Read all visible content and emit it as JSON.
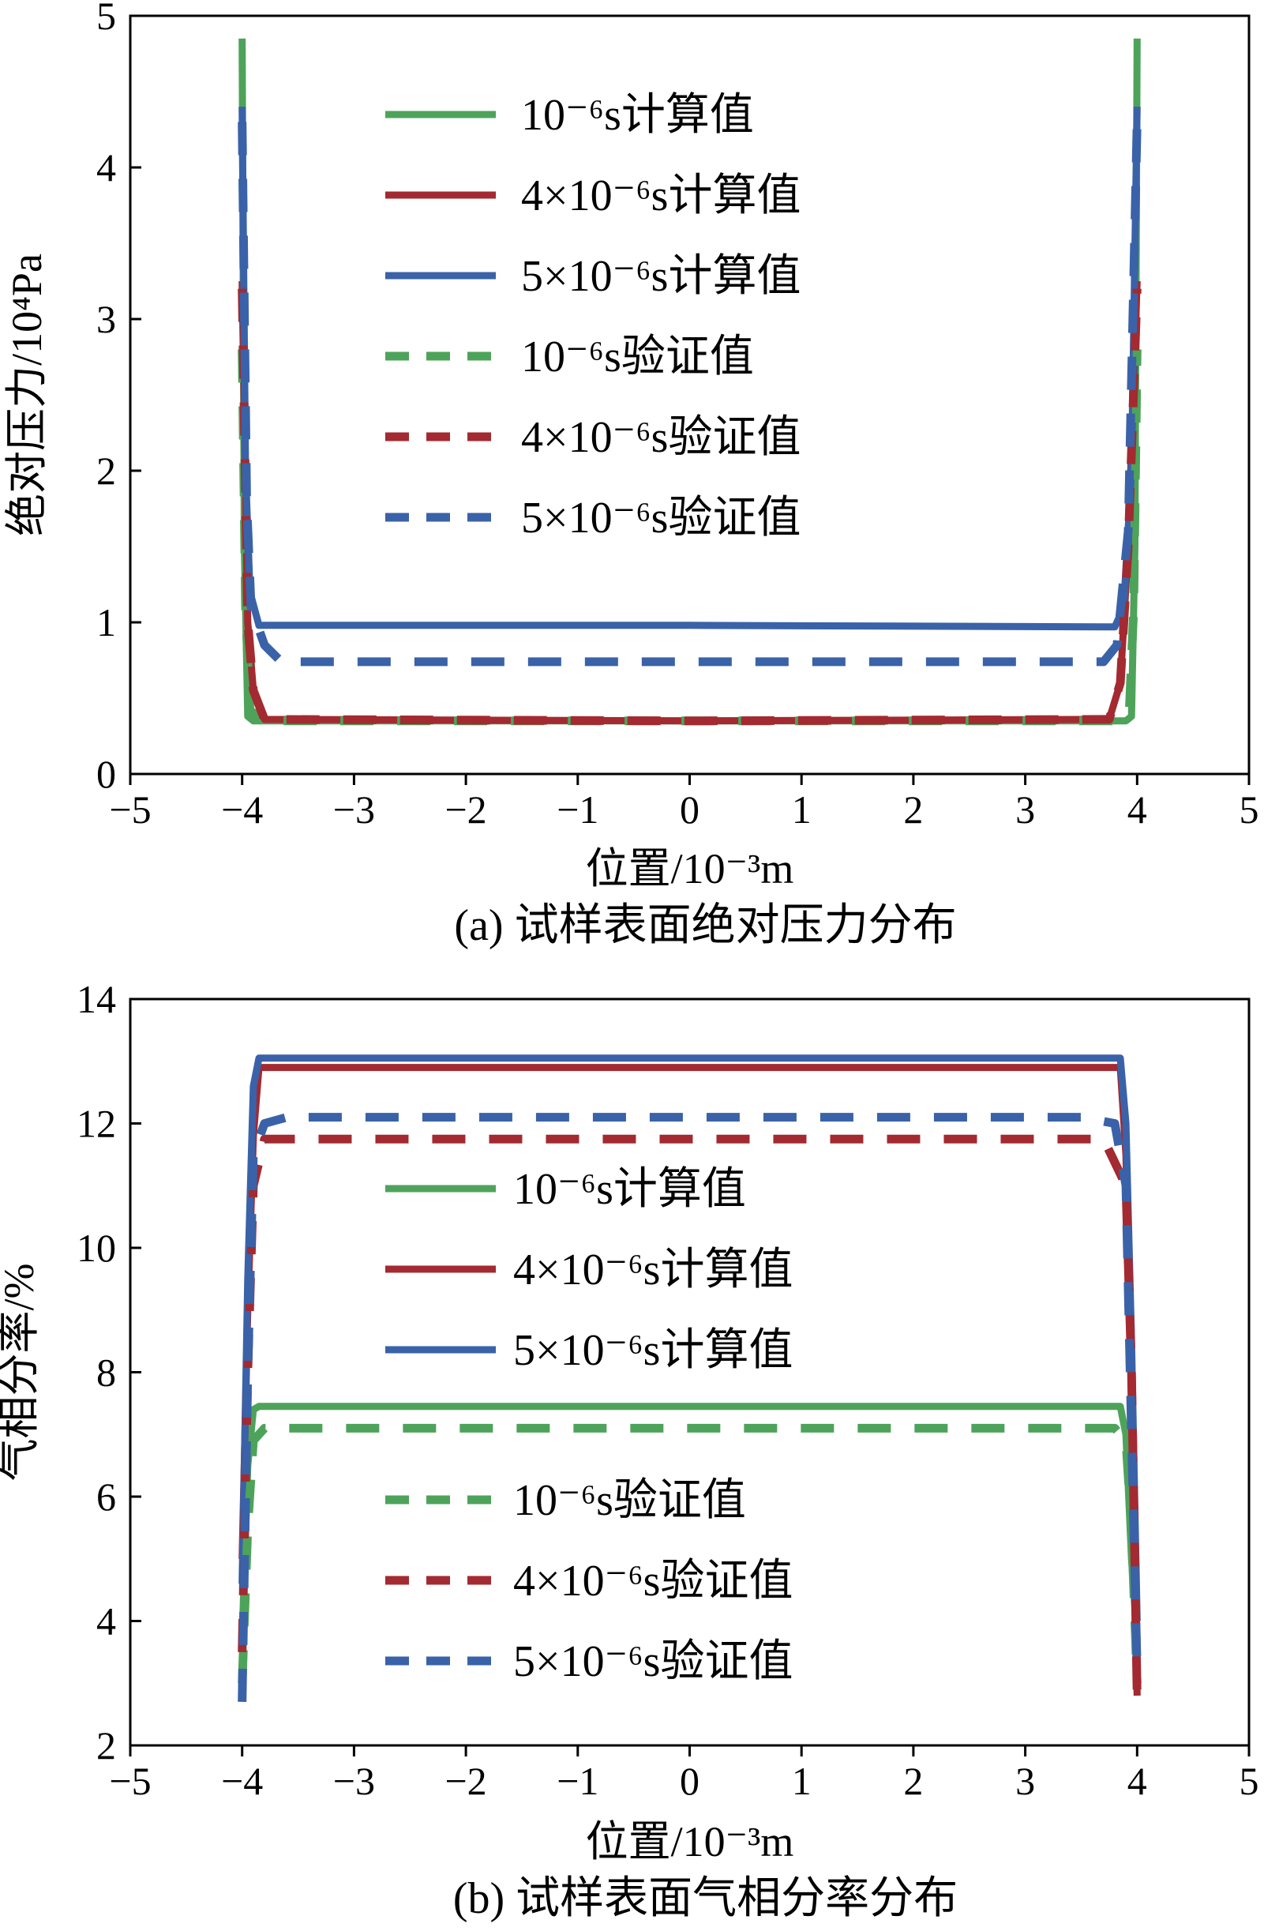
{
  "colors": {
    "green": "#4ea35a",
    "red": "#a32a30",
    "blue": "#3a62a8",
    "axis": "#000000"
  },
  "chart_data": [
    {
      "type": "line",
      "caption": "(a) 试样表面绝对压力分布",
      "xlabel": "位置/10⁻³m",
      "ylabel": "绝对压力/10⁴Pa",
      "xlim": [
        -5,
        5
      ],
      "ylim": [
        0,
        5
      ],
      "xticks": [
        -5,
        -4,
        -3,
        -2,
        -1,
        0,
        1,
        2,
        3,
        4,
        5
      ],
      "yticks": [
        0,
        1,
        2,
        3,
        4,
        5
      ],
      "xtick_labels": [
        "−5",
        "−4",
        "−3",
        "−2",
        "−1",
        "0",
        "1",
        "2",
        "3",
        "4",
        "5"
      ],
      "ytick_labels": [
        "0",
        "1",
        "2",
        "3",
        "4",
        "5"
      ],
      "grid": false,
      "legend_position": "top-center",
      "series": [
        {
          "name": "10⁻⁶s计算值",
          "color": "green",
          "style": "solid",
          "x": [
            -4,
            -3.98,
            -3.95,
            -3.9,
            0,
            3.9,
            3.95,
            3.98,
            4
          ],
          "y": [
            4.85,
            1.5,
            0.38,
            0.35,
            0.35,
            0.35,
            0.38,
            1.5,
            4.85
          ]
        },
        {
          "name": "4×10⁻⁶s计算值",
          "color": "red",
          "style": "solid",
          "x": [
            -4,
            -3.95,
            -3.9,
            -3.8,
            0,
            3.75,
            3.85,
            3.92,
            4
          ],
          "y": [
            3.25,
            1.0,
            0.55,
            0.36,
            0.35,
            0.36,
            0.6,
            1.5,
            3.25
          ]
        },
        {
          "name": "5×10⁻⁶s计算值",
          "color": "blue",
          "style": "solid",
          "x": [
            -4,
            -3.97,
            -3.93,
            -3.85,
            -3.0,
            0,
            3.8,
            3.88,
            3.95,
            4
          ],
          "y": [
            4.4,
            2.0,
            1.2,
            0.98,
            0.98,
            0.98,
            0.97,
            1.1,
            2.0,
            4.4
          ]
        },
        {
          "name": "10⁻⁶s验证值",
          "color": "green",
          "style": "dashed",
          "x": [
            -4,
            -3.97,
            -3.93,
            -3.8,
            0,
            3.8,
            3.93,
            3.97,
            4
          ],
          "y": [
            2.8,
            1.1,
            0.42,
            0.35,
            0.35,
            0.35,
            0.42,
            1.1,
            2.8
          ]
        },
        {
          "name": "4×10⁻⁶s验证值",
          "color": "red",
          "style": "dashed",
          "x": [
            -4,
            -3.95,
            -3.9,
            -3.8,
            0,
            3.75,
            3.85,
            3.92,
            4
          ],
          "y": [
            3.2,
            1.0,
            0.55,
            0.36,
            0.35,
            0.36,
            0.6,
            1.5,
            3.2
          ]
        },
        {
          "name": "5×10⁻⁶s验证值",
          "color": "blue",
          "style": "dashed",
          "x": [
            -4,
            -3.96,
            -3.92,
            -3.8,
            -3.65,
            0,
            3.7,
            3.82,
            3.92,
            4
          ],
          "y": [
            4.3,
            1.8,
            1.1,
            0.85,
            0.74,
            0.74,
            0.74,
            0.85,
            1.6,
            4.3
          ]
        }
      ]
    },
    {
      "type": "line",
      "caption": "(b) 试样表面气相分率分布",
      "xlabel": "位置/10⁻³m",
      "ylabel": "气相分率/%",
      "xlim": [
        -5,
        5
      ],
      "ylim": [
        2,
        14
      ],
      "xticks": [
        -5,
        -4,
        -3,
        -2,
        -1,
        0,
        1,
        2,
        3,
        4,
        5
      ],
      "yticks": [
        2,
        4,
        6,
        8,
        10,
        12,
        14
      ],
      "xtick_labels": [
        "−5",
        "−4",
        "−3",
        "−2",
        "−1",
        "0",
        "1",
        "2",
        "3",
        "4",
        "5"
      ],
      "ytick_labels": [
        "2",
        "4",
        "6",
        "8",
        "10",
        "12",
        "14"
      ],
      "grid": false,
      "legend_position": "center",
      "series": [
        {
          "name": "10⁻⁶s计算值",
          "color": "green",
          "style": "solid",
          "x": [
            -4,
            -3.95,
            -3.9,
            -3.85,
            0,
            3.85,
            3.9,
            3.95,
            4
          ],
          "y": [
            3.7,
            6.5,
            7.4,
            7.45,
            7.45,
            7.45,
            7.0,
            5.0,
            3.7
          ]
        },
        {
          "name": "4×10⁻⁶s计算值",
          "color": "red",
          "style": "solid",
          "x": [
            -4,
            -3.95,
            -3.9,
            -3.85,
            -3.0,
            0,
            3.85,
            3.9,
            3.95,
            4
          ],
          "y": [
            5.0,
            9.0,
            11.8,
            12.9,
            12.9,
            12.9,
            12.9,
            11.5,
            8.0,
            2.8
          ]
        },
        {
          "name": "5×10⁻⁶s计算值",
          "color": "blue",
          "style": "solid",
          "x": [
            -4,
            -3.95,
            -3.9,
            -3.85,
            -3.0,
            0,
            3.85,
            3.9,
            3.95,
            4
          ],
          "y": [
            4.6,
            9.5,
            12.6,
            13.05,
            13.05,
            13.05,
            13.05,
            12.0,
            8.5,
            4.0
          ]
        },
        {
          "name": "10⁻⁶s验证值",
          "color": "green",
          "style": "dashed",
          "x": [
            -4,
            -3.95,
            -3.9,
            -3.8,
            0,
            3.8,
            3.9,
            3.95,
            4
          ],
          "y": [
            3.0,
            5.5,
            6.9,
            7.1,
            7.1,
            7.1,
            6.9,
            5.5,
            3.0
          ]
        },
        {
          "name": "4×10⁻⁶s验证值",
          "color": "red",
          "style": "dashed",
          "x": [
            -4,
            -3.95,
            -3.9,
            -3.8,
            0,
            3.7,
            3.9,
            3.95,
            4
          ],
          "y": [
            3.5,
            8.0,
            11.0,
            11.75,
            11.75,
            11.75,
            11.0,
            8.0,
            2.8
          ]
        },
        {
          "name": "5×10⁻⁶s验证值",
          "color": "blue",
          "style": "dashed",
          "x": [
            -4,
            -3.95,
            -3.9,
            -3.8,
            -3.6,
            0,
            3.5,
            3.8,
            3.9,
            3.95,
            4
          ],
          "y": [
            2.7,
            8.0,
            11.5,
            12.0,
            12.1,
            12.1,
            12.1,
            12.0,
            11.0,
            7.0,
            3.2
          ]
        }
      ]
    }
  ]
}
